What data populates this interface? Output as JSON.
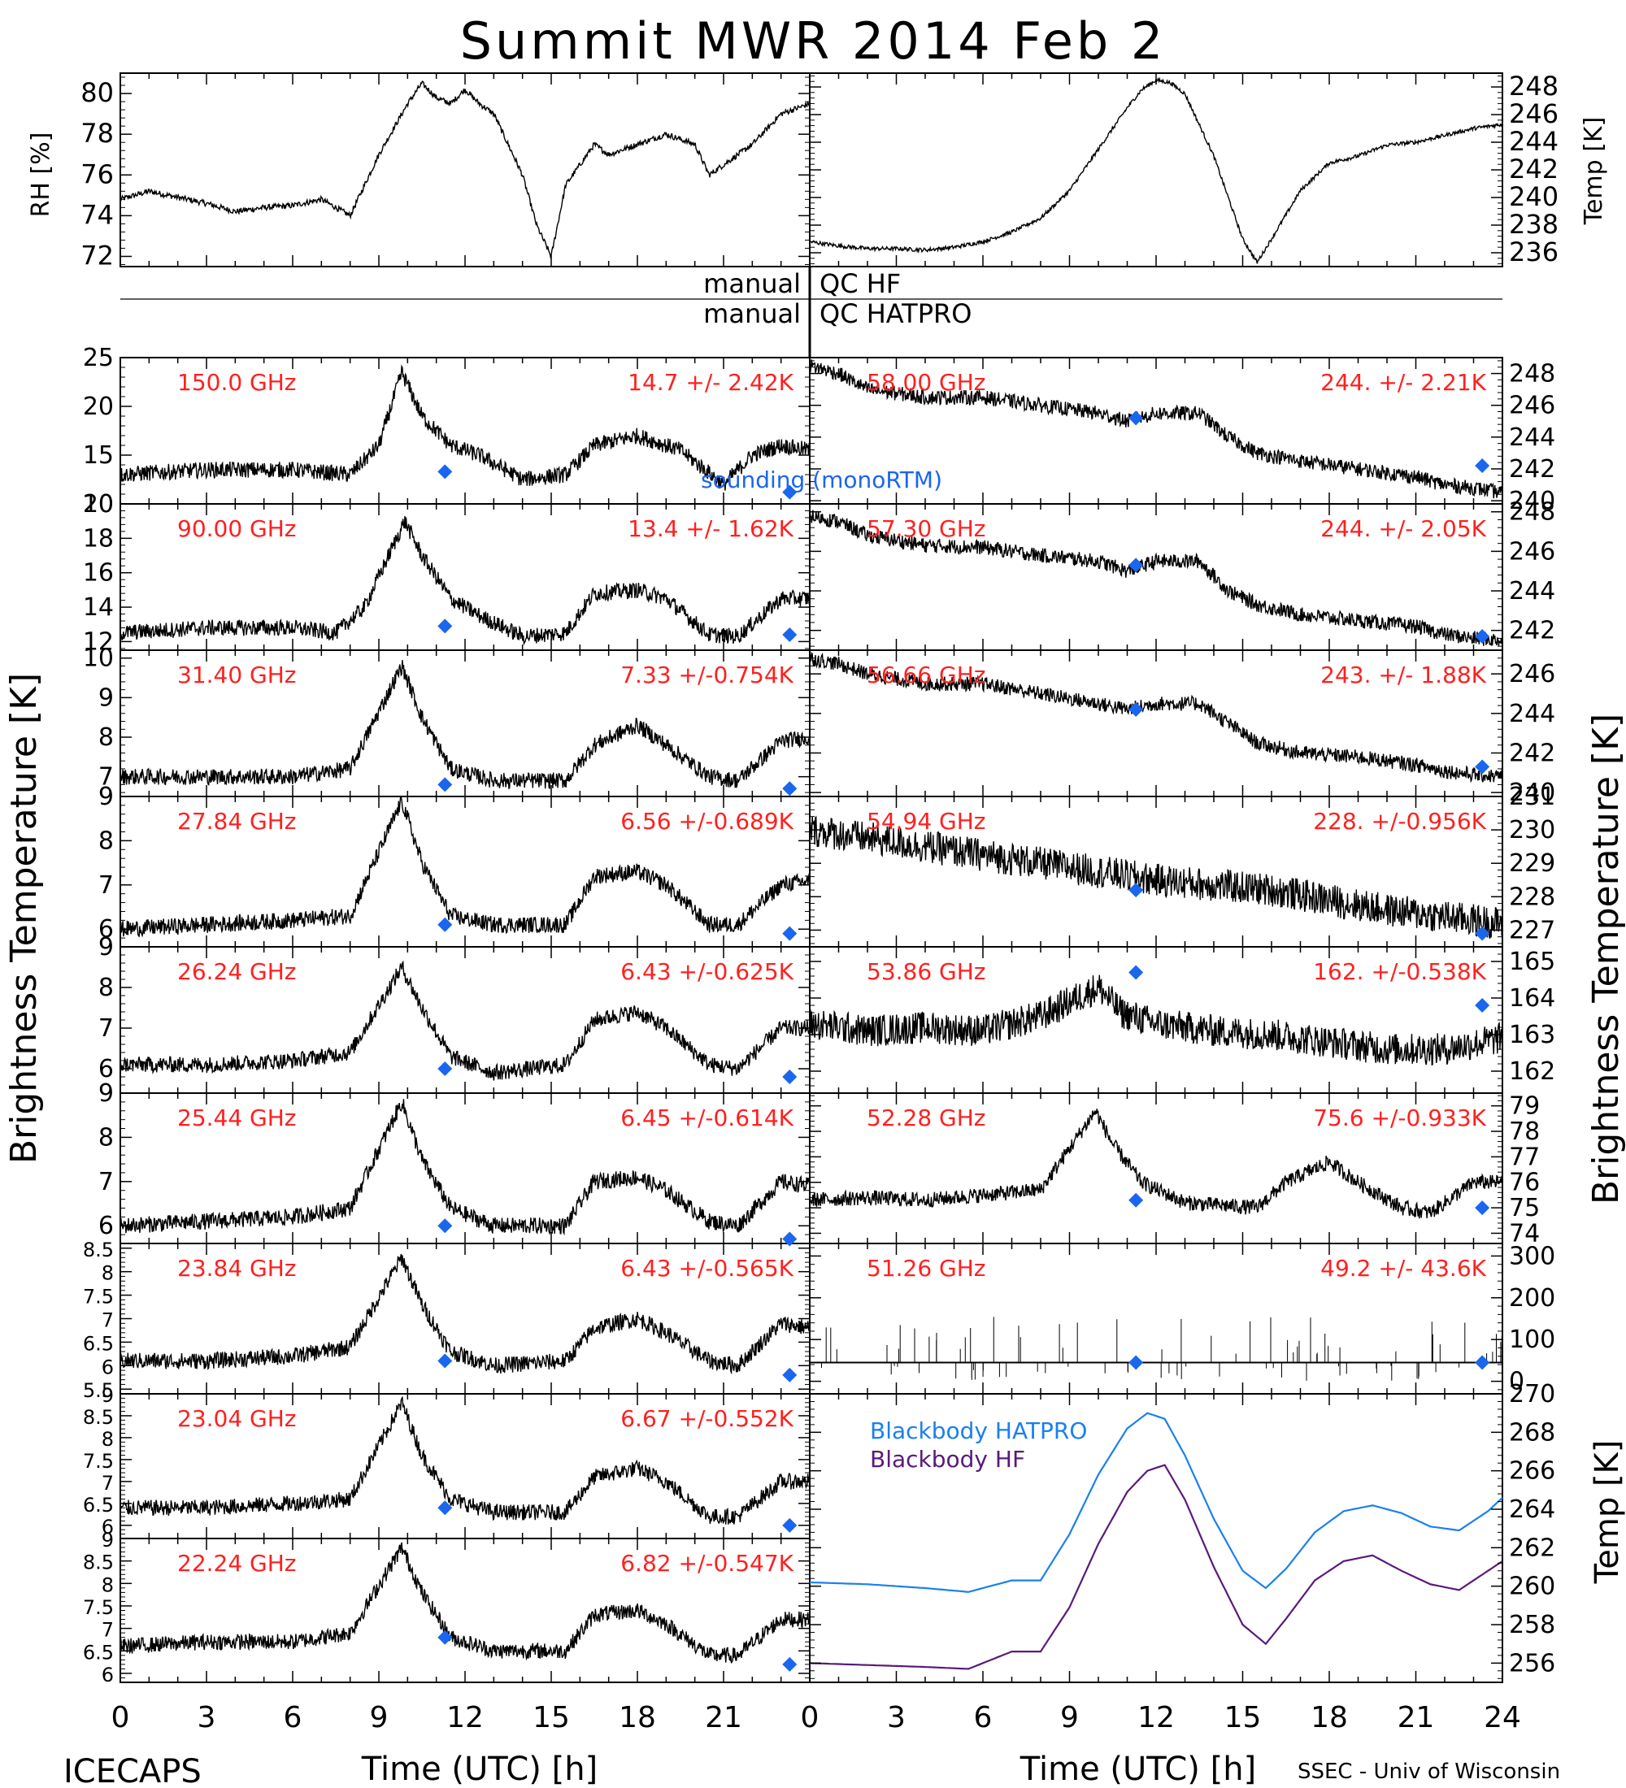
{
  "title": "Summit MWR 2014 Feb  2",
  "footer_left": "ICECAPS",
  "footer_right": "SSEC - Univ of Wisconsin",
  "colors": {
    "trace": "#000000",
    "label": "#ff2020",
    "marker": "#1a66ee",
    "hatpro": "#1a80ee",
    "hf": "#5a1a7a"
  },
  "qc": {
    "left1": "manual",
    "right1": "QC HF",
    "left2": "manual",
    "right2": "QC HATPRO"
  },
  "sounding_label": "sounding (monoRTM)",
  "xlabel": "Time (UTC) [h]",
  "y_left_label": "Brightness Temperature [K]",
  "y_right_label": "Brightness Temperature [K]",
  "x_ticks": [
    "0",
    "3",
    "6",
    "9",
    "12",
    "15",
    "18",
    "21",
    "24"
  ],
  "x_ticks_left": [
    "0",
    "3",
    "6",
    "9",
    "12",
    "15",
    "18",
    "21"
  ],
  "chart_data": [
    {
      "type": "line",
      "panel": "rh",
      "ylabel": "RH [%]",
      "ylim": [
        71.5,
        81
      ],
      "yticks": [
        72,
        74,
        76,
        78,
        80
      ],
      "x": [
        0,
        1,
        2,
        3,
        4,
        5,
        6,
        7,
        8,
        9,
        10,
        10.5,
        11,
        11.5,
        12,
        12.5,
        13,
        14,
        14.5,
        15,
        15.5,
        16,
        16.5,
        17,
        18,
        19,
        20,
        20.5,
        21,
        22,
        23,
        24
      ],
      "y": [
        74.8,
        75.2,
        74.9,
        74.6,
        74.2,
        74.4,
        74.5,
        74.8,
        74.0,
        77.0,
        79.5,
        80.5,
        79.8,
        79.5,
        80.2,
        79.5,
        79.0,
        76.0,
        73.5,
        72.0,
        75.5,
        76.5,
        77.5,
        77.0,
        77.5,
        78.0,
        77.5,
        76.0,
        76.5,
        77.5,
        79.0,
        79.5
      ]
    },
    {
      "type": "line",
      "panel": "temp",
      "ylabel": "Temp [K]",
      "ylim": [
        235,
        249
      ],
      "yticks": [
        236,
        238,
        240,
        242,
        244,
        246,
        248
      ],
      "x": [
        0,
        1,
        2,
        3,
        4,
        5,
        6,
        7,
        8,
        9,
        10,
        11,
        11.5,
        12,
        12.5,
        13,
        14,
        15,
        15.5,
        16,
        17,
        18,
        19,
        20,
        21,
        22,
        23,
        24
      ],
      "y": [
        236.8,
        236.5,
        236.3,
        236.3,
        236.2,
        236.4,
        236.8,
        237.5,
        238.5,
        240.5,
        243.5,
        246.5,
        247.8,
        248.5,
        248.3,
        247.5,
        243.0,
        237.0,
        235.3,
        237.0,
        240.5,
        242.5,
        243.0,
        243.8,
        244.0,
        244.5,
        245.0,
        245.3
      ]
    },
    {
      "type": "line",
      "panel": "150.0",
      "label": "150.0 GHz",
      "stat": "14.7 +/-  2.42K",
      "ylim": [
        10,
        25
      ],
      "yticks": [
        10,
        15,
        20,
        25
      ],
      "x": [
        0,
        3,
        6,
        8,
        9,
        9.8,
        10.5,
        11.5,
        12.5,
        14,
        15.5,
        16.5,
        18,
        19.5,
        21,
        22,
        23,
        24
      ],
      "y": [
        13,
        13.5,
        13.5,
        13,
        16,
        23.5,
        19,
        16,
        15,
        12.5,
        13,
        16,
        17,
        15.5,
        12,
        15,
        16,
        15.5
      ],
      "sounding": [
        [
          11.3,
          13.3
        ],
        [
          23.3,
          11.2
        ]
      ]
    },
    {
      "type": "line",
      "panel": "90.00",
      "label": "90.00 GHz",
      "stat": "13.4 +/-  1.62K",
      "ylim": [
        11.5,
        20
      ],
      "yticks": [
        12,
        14,
        16,
        18,
        20
      ],
      "x": [
        0,
        3,
        6,
        7.5,
        8.5,
        9.9,
        10.5,
        11.5,
        12.5,
        14,
        15.5,
        16.5,
        18,
        19,
        20.5,
        21.5,
        23,
        24
      ],
      "y": [
        12.5,
        12.8,
        12.8,
        12.5,
        14,
        19,
        17,
        14.5,
        13.5,
        12.3,
        12.5,
        14.8,
        15,
        14.5,
        12.4,
        12.3,
        14.5,
        14.5
      ],
      "sounding": [
        [
          11.3,
          12.9
        ],
        [
          23.3,
          12.4
        ]
      ]
    },
    {
      "type": "line",
      "panel": "31.40",
      "label": "31.40 GHz",
      "stat": "7.33 +/-0.754K",
      "ylim": [
        6.5,
        10.2
      ],
      "yticks": [
        7,
        8,
        9,
        10
      ],
      "x": [
        0,
        3,
        6,
        8,
        9.8,
        10.5,
        11.5,
        13,
        15.5,
        16.5,
        18,
        19,
        20.5,
        21.5,
        23,
        24
      ],
      "y": [
        7,
        7,
        7,
        7.2,
        9.8,
        8.5,
        7.2,
        6.9,
        6.9,
        7.8,
        8.3,
        7.8,
        7,
        6.9,
        7.9,
        8
      ],
      "sounding": [
        [
          11.3,
          6.8
        ],
        [
          23.3,
          6.7
        ]
      ]
    },
    {
      "type": "line",
      "panel": "27.84",
      "label": "27.84 GHz",
      "stat": "6.56 +/-0.689K",
      "ylim": [
        5.6,
        9
      ],
      "yticks": [
        6,
        7,
        8,
        9
      ],
      "x": [
        0,
        3,
        6,
        8,
        9.8,
        10.5,
        11.5,
        13,
        15.5,
        16.5,
        18,
        19,
        20.5,
        21.5,
        23,
        24
      ],
      "y": [
        6,
        6.1,
        6.2,
        6.3,
        8.9,
        7.5,
        6.3,
        6.1,
        6.1,
        7.2,
        7.3,
        7,
        6.1,
        6.1,
        7,
        7.1
      ],
      "sounding": [
        [
          11.3,
          6.1
        ],
        [
          23.3,
          5.9
        ]
      ]
    },
    {
      "type": "line",
      "panel": "26.24",
      "label": "26.24 GHz",
      "stat": "6.43 +/-0.625K",
      "ylim": [
        5.4,
        9
      ],
      "yticks": [
        6,
        7,
        8,
        9
      ],
      "x": [
        0,
        3,
        6,
        8,
        9.8,
        10.5,
        11.5,
        13,
        15.5,
        16.5,
        18,
        19,
        20.5,
        21.5,
        23,
        24
      ],
      "y": [
        6.1,
        6.1,
        6.2,
        6.4,
        8.5,
        7.5,
        6.3,
        5.9,
        6.1,
        7.2,
        7.4,
        7,
        6.1,
        6,
        7,
        7
      ],
      "sounding": [
        [
          11.3,
          6
        ],
        [
          23.3,
          5.8
        ]
      ]
    },
    {
      "type": "line",
      "panel": "25.44",
      "label": "25.44 GHz",
      "stat": "6.45 +/-0.614K",
      "ylim": [
        5.6,
        9
      ],
      "yticks": [
        6,
        7,
        8,
        9
      ],
      "x": [
        0,
        3,
        6,
        8,
        9.8,
        10.5,
        11.5,
        13,
        15.5,
        16.5,
        18,
        19,
        20.5,
        21.5,
        23,
        24
      ],
      "y": [
        6,
        6.1,
        6.2,
        6.4,
        8.8,
        7.5,
        6.4,
        6,
        6,
        7,
        7.1,
        6.8,
        6.1,
        6,
        7,
        6.9
      ],
      "sounding": [
        [
          11.3,
          6
        ],
        [
          23.3,
          5.7
        ]
      ]
    },
    {
      "type": "line",
      "panel": "23.84",
      "label": "23.84 GHz",
      "stat": "6.43 +/-0.565K",
      "ylim": [
        5.4,
        8.6
      ],
      "yticks": [
        5.5,
        6,
        6.5,
        7,
        7.5,
        8,
        8.5
      ],
      "x": [
        0,
        3,
        6,
        8,
        9.8,
        10.5,
        11.5,
        13,
        15.5,
        16.5,
        18,
        19,
        20.5,
        21.5,
        23,
        24
      ],
      "y": [
        6.1,
        6.1,
        6.2,
        6.4,
        8.3,
        7.3,
        6.3,
        6,
        6.1,
        6.8,
        7,
        6.7,
        6.1,
        6,
        6.9,
        6.8
      ],
      "sounding": [
        [
          11.3,
          6.1
        ],
        [
          23.3,
          5.8
        ]
      ]
    },
    {
      "type": "line",
      "panel": "23.04",
      "label": "23.04 GHz",
      "stat": "6.67 +/-0.552K",
      "ylim": [
        5.7,
        9
      ],
      "yticks": [
        6,
        6.5,
        7,
        7.5,
        8,
        8.5,
        9
      ],
      "x": [
        0,
        3,
        6,
        8,
        9.8,
        10.5,
        11.5,
        13,
        15.5,
        16.5,
        18,
        19,
        20.5,
        21.5,
        23,
        24
      ],
      "y": [
        6.4,
        6.4,
        6.5,
        6.6,
        8.8,
        7.6,
        6.6,
        6.3,
        6.3,
        7.1,
        7.3,
        7,
        6.2,
        6.2,
        7,
        7
      ],
      "sounding": [
        [
          11.3,
          6.4
        ],
        [
          23.3,
          6
        ]
      ]
    },
    {
      "type": "line",
      "panel": "22.24",
      "label": "22.24 GHz",
      "stat": "6.82 +/-0.547K",
      "ylim": [
        5.8,
        9
      ],
      "yticks": [
        6,
        6.5,
        7,
        7.5,
        8,
        8.5,
        9
      ],
      "x": [
        0,
        3,
        6,
        8,
        9.8,
        10.5,
        11.5,
        13,
        15.5,
        16.5,
        18,
        19,
        20.5,
        21.5,
        23,
        24
      ],
      "y": [
        6.6,
        6.7,
        6.7,
        6.9,
        8.8,
        7.8,
        6.8,
        6.5,
        6.5,
        7.3,
        7.4,
        7.1,
        6.4,
        6.4,
        7.2,
        7.2
      ],
      "sounding": [
        [
          11.3,
          6.8
        ],
        [
          23.3,
          6.2
        ]
      ]
    },
    {
      "type": "line",
      "panel": "58.00",
      "label": "58.00 GHz",
      "stat": "244. +/- 2.21K",
      "ylim": [
        239.8,
        249
      ],
      "yticks": [
        240,
        242,
        244,
        246,
        248
      ],
      "x": [
        0,
        1,
        2,
        4,
        6,
        8,
        10,
        11,
        12,
        13.5,
        14.5,
        15.5,
        17,
        19,
        21,
        22,
        23,
        24
      ],
      "y": [
        248.5,
        248,
        247,
        246.5,
        246.5,
        246,
        245.5,
        245,
        245.5,
        245.5,
        244,
        243,
        242.5,
        242,
        241.5,
        241,
        240.8,
        240.5
      ],
      "sounding": [
        [
          11.3,
          245.2
        ],
        [
          23.3,
          242.2
        ]
      ]
    },
    {
      "type": "line",
      "panel": "57.30",
      "label": "57.30 GHz",
      "stat": "244. +/- 2.05K",
      "ylim": [
        241,
        248.4
      ],
      "yticks": [
        242,
        244,
        246,
        248
      ],
      "x": [
        0,
        1,
        2,
        4,
        6,
        8,
        10,
        11,
        12,
        13.5,
        14.5,
        15.5,
        17,
        19,
        21,
        22,
        23,
        24
      ],
      "y": [
        247.8,
        247.5,
        246.8,
        246.3,
        246.2,
        245.8,
        245.5,
        245,
        245.5,
        245.5,
        244,
        243.3,
        242.8,
        242.5,
        242.2,
        241.8,
        241.6,
        241.5
      ],
      "sounding": [
        [
          11.3,
          245.3
        ],
        [
          23.3,
          241.7
        ]
      ]
    },
    {
      "type": "line",
      "panel": "56.66",
      "label": "56.66 GHz",
      "stat": "243. +/- 1.88K",
      "ylim": [
        239.8,
        247.2
      ],
      "yticks": [
        240,
        242,
        244,
        246
      ],
      "x": [
        0,
        1,
        2,
        4,
        6,
        8,
        10,
        11,
        12,
        13.5,
        14.5,
        15.5,
        17,
        19,
        21,
        22,
        23,
        24
      ],
      "y": [
        246.8,
        246.5,
        246,
        245.5,
        245.5,
        245,
        244.5,
        244.2,
        244.5,
        244.5,
        243.5,
        242.5,
        242,
        241.8,
        241.4,
        241.1,
        240.9,
        240.8
      ],
      "sounding": [
        [
          11.3,
          244.2
        ],
        [
          23.3,
          241.3
        ]
      ]
    },
    {
      "type": "line",
      "panel": "54.94",
      "label": "54.94 GHz",
      "stat": "228. +/-0.956K",
      "ylim": [
        226.5,
        231
      ],
      "yticks": [
        227,
        228,
        229,
        230,
        231
      ],
      "x": [
        0,
        4,
        8,
        12,
        16,
        20,
        24
      ],
      "y": [
        230,
        229.5,
        229,
        228.5,
        228.2,
        227.6,
        227.2
      ],
      "sounding": [
        [
          11.3,
          228.2
        ],
        [
          23.3,
          226.9
        ]
      ]
    },
    {
      "type": "line",
      "panel": "53.86",
      "label": "53.86 GHz",
      "stat": "162. +/-0.538K",
      "ylim": [
        161.4,
        165.4
      ],
      "yticks": [
        162,
        163,
        164,
        165
      ],
      "x": [
        0,
        2,
        4,
        6,
        8,
        9,
        10,
        10.8,
        12,
        14,
        16,
        18,
        20,
        22,
        24
      ],
      "y": [
        163.3,
        163.1,
        163.2,
        163.1,
        163.5,
        163.9,
        164.3,
        163.6,
        163.3,
        163.1,
        163,
        162.8,
        162.6,
        162.6,
        162.9
      ],
      "sounding": [
        [
          11.3,
          164.7
        ],
        [
          23.3,
          163.8
        ]
      ]
    },
    {
      "type": "line",
      "panel": "52.28",
      "label": "52.28 GHz",
      "stat": "75.6 +/-0.933K",
      "ylim": [
        73.6,
        79.5
      ],
      "yticks": [
        74,
        75,
        76,
        77,
        78,
        79
      ],
      "x": [
        0,
        2,
        4,
        6,
        8,
        9.9,
        10.5,
        11.5,
        13,
        15.5,
        16.5,
        18,
        19,
        20.5,
        21.5,
        23,
        24
      ],
      "y": [
        75.3,
        75.4,
        75.3,
        75.5,
        75.7,
        78.8,
        77.5,
        76,
        75.2,
        75,
        76,
        76.8,
        76,
        75,
        74.8,
        76,
        76
      ],
      "sounding": [
        [
          11.3,
          75.3
        ],
        [
          23.3,
          75
        ]
      ]
    },
    {
      "type": "line",
      "panel": "51.26",
      "label": "51.26 GHz",
      "stat": "49.2 +/- 43.6K",
      "ylim": [
        -30,
        330
      ],
      "yticks": [
        0,
        100,
        200,
        300
      ],
      "x": [
        0,
        24
      ],
      "y": [
        45,
        45
      ],
      "sounding": [
        [
          11.3,
          45
        ],
        [
          23.3,
          45
        ]
      ]
    },
    {
      "type": "line",
      "panel": "bb",
      "ylabel": "Temp [K]",
      "ylim": [
        255,
        270
      ],
      "yticks": [
        256,
        258,
        260,
        262,
        264,
        266,
        268,
        270
      ],
      "series": [
        {
          "name": "Blackbody HATPRO",
          "x": [
            0,
            2,
            4,
            5.5,
            7,
            8,
            9,
            10,
            11,
            11.7,
            12.3,
            13,
            14,
            15,
            15.8,
            16.5,
            17.5,
            18.5,
            19.5,
            20.5,
            21.5,
            22.5,
            23.5,
            24
          ],
          "y": [
            260.2,
            260.1,
            259.9,
            259.7,
            260.3,
            260.3,
            262.7,
            265.8,
            268.2,
            269,
            268.7,
            266.8,
            263.5,
            260.8,
            259.9,
            260.9,
            262.8,
            263.9,
            264.2,
            263.8,
            263.1,
            262.9,
            263.9,
            264.6
          ]
        },
        {
          "name": "Blackbody HF",
          "x": [
            0,
            2,
            4,
            5.5,
            7,
            8,
            9,
            10,
            11,
            11.7,
            12.3,
            13,
            14,
            15,
            15.8,
            16.5,
            17.5,
            18.5,
            19.5,
            20.5,
            21.5,
            22.5,
            23.5,
            24
          ],
          "y": [
            256,
            255.9,
            255.8,
            255.7,
            256.6,
            256.6,
            258.9,
            262.2,
            264.9,
            266,
            266.3,
            264.5,
            261,
            258,
            257,
            258.3,
            260.3,
            261.3,
            261.6,
            260.8,
            260.1,
            259.8,
            260.8,
            261.3
          ]
        }
      ]
    }
  ]
}
